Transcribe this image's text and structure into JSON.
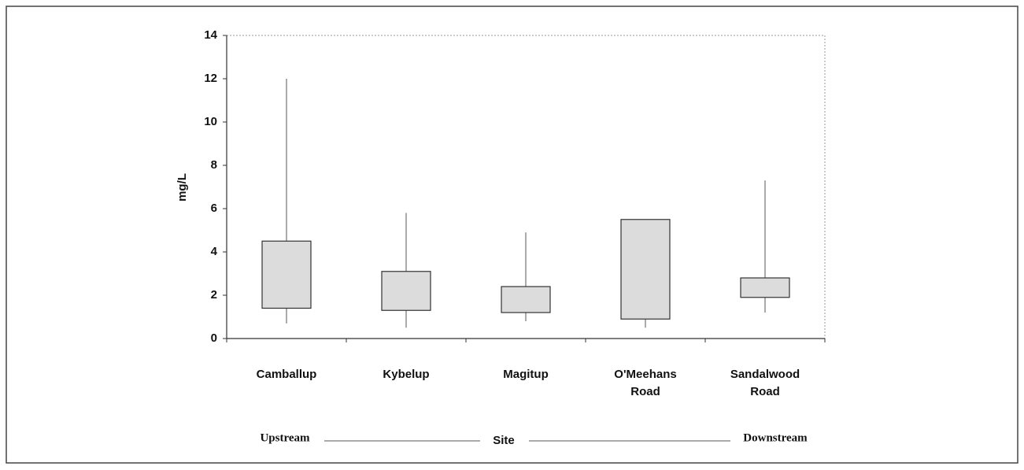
{
  "chart_data": {
    "type": "box",
    "y_label": "mg/L",
    "x_label": "Site",
    "annotations": {
      "left": "Upstream",
      "right": "Downstream"
    },
    "categories": [
      "Camballup",
      "Kybelup",
      "Magitup",
      "O'Meehans Road",
      "Sandalwood Road"
    ],
    "boxes": [
      {
        "min": 0.7,
        "q1": 1.4,
        "q3": 4.5,
        "max": 12.0
      },
      {
        "min": 0.5,
        "q1": 1.3,
        "q3": 3.1,
        "max": 5.8
      },
      {
        "min": 0.8,
        "q1": 1.2,
        "q3": 2.4,
        "max": 4.9
      },
      {
        "min": 0.5,
        "q1": 0.9,
        "q3": 5.5,
        "max": 5.5
      },
      {
        "min": 1.2,
        "q1": 1.9,
        "q3": 2.8,
        "max": 7.3
      }
    ],
    "color": "#dcdcdc",
    "ylim": [
      0,
      14
    ],
    "yticks": [
      0,
      2,
      4,
      6,
      8,
      10,
      12,
      14
    ]
  }
}
